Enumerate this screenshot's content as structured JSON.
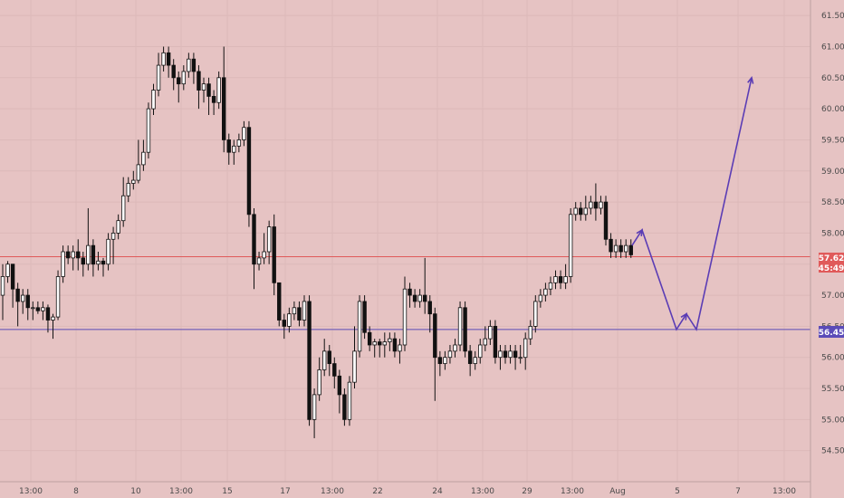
{
  "chart_data": {
    "type": "candlestick",
    "ylim": [
      54.0,
      61.75
    ],
    "y_ticks": [
      "54.50",
      "55.00",
      "55.50",
      "56.00",
      "56.50",
      "57.00",
      "57.50",
      "58.00",
      "58.50",
      "59.00",
      "59.50",
      "60.00",
      "60.50",
      "61.00",
      "61.50"
    ],
    "x_ticks": [
      "13:00",
      "8",
      "10",
      "13:00",
      "15",
      "17",
      "13:00",
      "22",
      "24",
      "13:00",
      "29",
      "13:00",
      "Aug",
      "5",
      "7",
      "13:00"
    ],
    "lines": {
      "red": {
        "value": 57.62,
        "label": "57.62",
        "color": "#e05a5a"
      },
      "blue": {
        "value": 56.45,
        "label": "56.45",
        "color": "#5b4bb8"
      }
    },
    "countdown": "45:49",
    "candles": [
      [
        57.0,
        57.3,
        56.6,
        57.5
      ],
      [
        57.3,
        57.5,
        57.2,
        57.55
      ],
      [
        57.5,
        57.1,
        56.8,
        57.5
      ],
      [
        57.1,
        56.9,
        56.5,
        57.2
      ],
      [
        56.9,
        57.0,
        56.7,
        57.1
      ],
      [
        57.0,
        56.8,
        56.6,
        57.1
      ],
      [
        56.8,
        56.8,
        56.6,
        56.9
      ],
      [
        56.8,
        56.75,
        56.7,
        56.9
      ],
      [
        56.75,
        56.8,
        56.6,
        56.9
      ],
      [
        56.8,
        56.6,
        56.4,
        56.85
      ],
      [
        56.6,
        56.65,
        56.3,
        56.7
      ],
      [
        56.65,
        57.3,
        56.6,
        57.4
      ],
      [
        57.3,
        57.7,
        57.2,
        57.8
      ],
      [
        57.7,
        57.6,
        57.5,
        57.8
      ],
      [
        57.6,
        57.7,
        57.4,
        57.8
      ],
      [
        57.7,
        57.6,
        57.4,
        57.9
      ],
      [
        57.6,
        57.5,
        57.3,
        57.7
      ],
      [
        57.5,
        57.8,
        57.4,
        58.4
      ],
      [
        57.8,
        57.5,
        57.3,
        57.9
      ],
      [
        57.5,
        57.55,
        57.4,
        57.7
      ],
      [
        57.55,
        57.5,
        57.3,
        57.6
      ],
      [
        57.5,
        57.9,
        57.4,
        58.0
      ],
      [
        57.9,
        58.0,
        57.5,
        58.1
      ],
      [
        58.0,
        58.2,
        57.9,
        58.3
      ],
      [
        58.2,
        58.6,
        58.1,
        58.9
      ],
      [
        58.6,
        58.8,
        58.5,
        58.9
      ],
      [
        58.8,
        58.85,
        58.7,
        59.0
      ],
      [
        58.85,
        59.1,
        58.8,
        59.5
      ],
      [
        59.1,
        59.3,
        59.0,
        59.5
      ],
      [
        59.3,
        60.0,
        59.2,
        60.1
      ],
      [
        60.0,
        60.3,
        59.9,
        60.4
      ],
      [
        60.3,
        60.7,
        60.2,
        60.9
      ],
      [
        60.7,
        60.9,
        60.6,
        61.0
      ],
      [
        60.9,
        60.7,
        60.5,
        61.0
      ],
      [
        60.7,
        60.5,
        60.3,
        60.8
      ],
      [
        60.5,
        60.4,
        60.1,
        60.6
      ],
      [
        60.4,
        60.6,
        60.3,
        60.7
      ],
      [
        60.6,
        60.8,
        60.5,
        60.9
      ],
      [
        60.8,
        60.6,
        60.4,
        60.9
      ],
      [
        60.6,
        60.3,
        60.0,
        60.7
      ],
      [
        60.3,
        60.4,
        60.1,
        60.5
      ],
      [
        60.4,
        60.2,
        59.9,
        60.5
      ],
      [
        60.2,
        60.1,
        59.9,
        60.3
      ],
      [
        60.1,
        60.5,
        60.0,
        60.6
      ],
      [
        60.5,
        59.5,
        59.3,
        61.0
      ],
      [
        59.5,
        59.3,
        59.1,
        59.6
      ],
      [
        59.3,
        59.4,
        59.1,
        59.5
      ],
      [
        59.4,
        59.5,
        59.3,
        59.6
      ],
      [
        59.5,
        59.7,
        59.4,
        59.8
      ],
      [
        59.7,
        58.3,
        58.1,
        59.8
      ],
      [
        58.3,
        57.5,
        57.1,
        58.4
      ],
      [
        57.5,
        57.6,
        57.4,
        57.7
      ],
      [
        57.6,
        57.7,
        57.5,
        58.0
      ],
      [
        57.7,
        58.1,
        57.5,
        58.2
      ],
      [
        58.1,
        57.2,
        57.0,
        58.3
      ],
      [
        57.2,
        56.6,
        56.5,
        57.2
      ],
      [
        56.6,
        56.5,
        56.3,
        56.7
      ],
      [
        56.5,
        56.7,
        56.4,
        56.8
      ],
      [
        56.7,
        56.8,
        56.6,
        56.9
      ],
      [
        56.8,
        56.6,
        56.5,
        56.9
      ],
      [
        56.6,
        56.9,
        56.5,
        57.0
      ],
      [
        56.9,
        55.0,
        54.9,
        57.0
      ],
      [
        55.0,
        55.4,
        54.7,
        55.5
      ],
      [
        55.4,
        55.8,
        55.3,
        56.0
      ],
      [
        55.8,
        56.1,
        55.7,
        56.3
      ],
      [
        56.1,
        55.9,
        55.7,
        56.2
      ],
      [
        55.9,
        55.7,
        55.5,
        56.0
      ],
      [
        55.7,
        55.4,
        55.1,
        55.8
      ],
      [
        55.4,
        55.0,
        54.9,
        55.5
      ],
      [
        55.0,
        55.6,
        54.9,
        55.7
      ],
      [
        55.6,
        56.1,
        55.5,
        56.5
      ],
      [
        56.1,
        56.9,
        56.0,
        57.0
      ],
      [
        56.9,
        56.4,
        56.3,
        57.0
      ],
      [
        56.4,
        56.2,
        56.1,
        56.5
      ],
      [
        56.2,
        56.25,
        56.0,
        56.3
      ],
      [
        56.25,
        56.2,
        56.0,
        56.3
      ],
      [
        56.2,
        56.25,
        56.0,
        56.4
      ],
      [
        56.25,
        56.3,
        56.1,
        56.4
      ],
      [
        56.3,
        56.1,
        56.0,
        56.4
      ],
      [
        56.1,
        56.2,
        55.9,
        56.3
      ],
      [
        56.2,
        57.1,
        56.1,
        57.3
      ],
      [
        57.1,
        57.0,
        56.8,
        57.2
      ],
      [
        57.0,
        56.9,
        56.8,
        57.1
      ],
      [
        56.9,
        57.0,
        56.8,
        57.1
      ],
      [
        57.0,
        56.9,
        56.7,
        57.6
      ],
      [
        56.9,
        56.7,
        56.4,
        57.0
      ],
      [
        56.7,
        56.0,
        55.3,
        56.8
      ],
      [
        56.0,
        55.9,
        55.7,
        56.1
      ],
      [
        55.9,
        56.0,
        55.8,
        56.1
      ],
      [
        56.0,
        56.1,
        55.9,
        56.2
      ],
      [
        56.1,
        56.2,
        56.0,
        56.3
      ],
      [
        56.2,
        56.8,
        56.1,
        56.9
      ],
      [
        56.8,
        56.1,
        56.0,
        56.9
      ],
      [
        56.1,
        55.9,
        55.7,
        56.2
      ],
      [
        55.9,
        56.0,
        55.8,
        56.1
      ],
      [
        56.0,
        56.2,
        55.9,
        56.3
      ],
      [
        56.2,
        56.3,
        56.1,
        56.5
      ],
      [
        56.3,
        56.5,
        56.2,
        56.6
      ],
      [
        56.5,
        56.0,
        55.9,
        56.6
      ],
      [
        56.0,
        56.1,
        55.8,
        56.2
      ],
      [
        56.1,
        56.0,
        55.9,
        56.2
      ],
      [
        56.0,
        56.1,
        55.9,
        56.2
      ],
      [
        56.1,
        56.0,
        55.8,
        56.2
      ],
      [
        56.0,
        56.0,
        55.9,
        56.2
      ],
      [
        56.0,
        56.3,
        55.8,
        56.4
      ],
      [
        56.3,
        56.5,
        56.2,
        56.6
      ],
      [
        56.5,
        56.9,
        56.4,
        57.0
      ],
      [
        56.9,
        57.0,
        56.8,
        57.1
      ],
      [
        57.0,
        57.1,
        56.9,
        57.2
      ],
      [
        57.1,
        57.2,
        57.0,
        57.3
      ],
      [
        57.2,
        57.3,
        57.1,
        57.4
      ],
      [
        57.3,
        57.2,
        57.1,
        57.4
      ],
      [
        57.2,
        57.3,
        57.1,
        57.5
      ],
      [
        57.3,
        58.3,
        57.2,
        58.4
      ],
      [
        58.3,
        58.4,
        58.2,
        58.5
      ],
      [
        58.4,
        58.3,
        58.2,
        58.5
      ],
      [
        58.3,
        58.4,
        58.2,
        58.6
      ],
      [
        58.4,
        58.5,
        58.3,
        58.6
      ],
      [
        58.5,
        58.4,
        58.2,
        58.8
      ],
      [
        58.4,
        58.5,
        58.3,
        58.6
      ],
      [
        58.5,
        57.9,
        57.8,
        58.6
      ],
      [
        57.9,
        57.7,
        57.6,
        58.0
      ],
      [
        57.7,
        57.8,
        57.6,
        57.9
      ],
      [
        57.8,
        57.7,
        57.6,
        57.9
      ],
      [
        57.7,
        57.8,
        57.6,
        57.9
      ],
      [
        57.8,
        57.65,
        57.6,
        57.9
      ]
    ],
    "projection": [
      [
        57.8,
        0
      ],
      [
        58.05,
        1
      ],
      [
        56.45,
        2
      ],
      [
        56.7,
        3
      ],
      [
        56.45,
        4
      ],
      [
        60.5,
        5
      ]
    ]
  }
}
